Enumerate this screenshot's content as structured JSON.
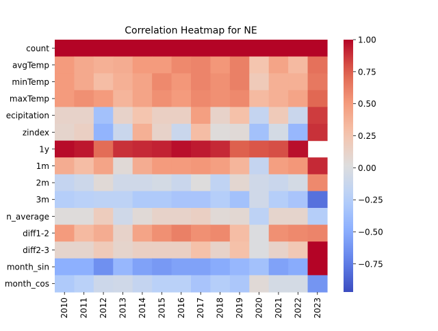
{
  "chart_data": {
    "type": "heatmap",
    "title": "Correlation Heatmap for NE",
    "xlabel": "",
    "ylabel": "",
    "colormap": "coolwarm",
    "x": [
      "2010",
      "2011",
      "2012",
      "2013",
      "2014",
      "2015",
      "2016",
      "2017",
      "2018",
      "2019",
      "2020",
      "2021",
      "2022",
      "2023"
    ],
    "y": [
      "count",
      "avgTemp",
      "minTemp",
      "maxTemp",
      "precipitation",
      "zindex",
      "1y",
      "1m",
      "2m",
      "3m",
      "precipitation_average",
      "diff1-2",
      "diff2-3",
      "month_sin",
      "month_cos"
    ],
    "y_tick_labels": [
      "count",
      "avgTemp",
      "minTemp",
      "maxTemp",
      "ecipitation",
      "zindex",
      "1y",
      "1m",
      "2m",
      "3m",
      "n_average",
      "diff1-2",
      "diff2-3",
      "month_sin",
      "month_cos"
    ],
    "values": [
      [
        1.0,
        1.0,
        1.0,
        1.0,
        1.0,
        1.0,
        1.0,
        1.0,
        1.0,
        1.0,
        1.0,
        1.0,
        1.0,
        1.0
      ],
      [
        0.5,
        0.42,
        0.38,
        0.4,
        0.5,
        0.5,
        0.58,
        0.6,
        0.52,
        0.62,
        0.25,
        0.45,
        0.32,
        0.68
      ],
      [
        0.5,
        0.42,
        0.3,
        0.38,
        0.45,
        0.58,
        0.52,
        0.6,
        0.55,
        0.62,
        0.2,
        0.38,
        0.38,
        0.65
      ],
      [
        0.5,
        0.55,
        0.5,
        0.35,
        0.45,
        0.55,
        0.5,
        0.58,
        0.55,
        0.58,
        0.32,
        0.38,
        0.45,
        0.72
      ],
      [
        0.12,
        0.12,
        -0.35,
        0.12,
        0.25,
        0.15,
        0.15,
        0.48,
        0.12,
        0.28,
        -0.15,
        0.2,
        -0.12,
        0.85
      ],
      [
        0.1,
        0.15,
        -0.45,
        -0.12,
        0.38,
        0.12,
        -0.12,
        0.3,
        0.03,
        0.05,
        -0.35,
        -0.05,
        -0.42,
        0.88
      ],
      [
        0.98,
        0.95,
        0.7,
        0.88,
        0.9,
        0.92,
        0.97,
        0.94,
        0.9,
        0.75,
        0.78,
        0.8,
        0.97,
        null
      ],
      [
        0.4,
        0.3,
        0.45,
        0.05,
        0.4,
        0.5,
        0.5,
        0.52,
        0.48,
        0.35,
        -0.15,
        0.48,
        0.52,
        0.9
      ],
      [
        -0.15,
        -0.1,
        0.05,
        -0.08,
        -0.08,
        -0.05,
        -0.12,
        0.02,
        -0.18,
        0.08,
        -0.08,
        -0.12,
        -0.05,
        0.58
      ],
      [
        -0.25,
        -0.22,
        -0.2,
        -0.2,
        -0.28,
        -0.28,
        -0.32,
        -0.32,
        -0.25,
        -0.35,
        -0.08,
        -0.25,
        -0.32,
        -0.8
      ],
      [
        0.03,
        0.03,
        0.18,
        -0.08,
        0.05,
        0.12,
        0.12,
        0.15,
        0.05,
        0.07,
        -0.2,
        0.1,
        0.1,
        -0.25
      ],
      [
        0.5,
        0.32,
        0.4,
        0.12,
        0.45,
        0.55,
        0.62,
        0.55,
        0.58,
        0.3,
        0.0,
        0.55,
        0.58,
        0.6
      ],
      [
        0.1,
        0.1,
        0.2,
        0.1,
        0.15,
        0.15,
        0.15,
        0.28,
        0.12,
        0.28,
        0.0,
        0.12,
        0.22,
        1.0
      ],
      [
        -0.48,
        -0.48,
        -0.65,
        -0.42,
        -0.55,
        -0.6,
        -0.55,
        -0.55,
        -0.5,
        -0.42,
        -0.35,
        -0.55,
        -0.5,
        1.0
      ],
      [
        -0.28,
        -0.22,
        -0.1,
        -0.08,
        -0.15,
        -0.22,
        -0.22,
        -0.32,
        -0.25,
        -0.3,
        0.05,
        -0.05,
        -0.05,
        -0.62
      ]
    ],
    "colorbar": {
      "vmin": -0.97,
      "vmax": 1.0,
      "ticks": [
        "1.00",
        "0.75",
        "0.50",
        "0.25",
        "0.00",
        "−0.25",
        "−0.50",
        "−0.75"
      ],
      "tick_values": [
        1.0,
        0.75,
        0.5,
        0.25,
        0.0,
        -0.25,
        -0.5,
        -0.75
      ]
    }
  }
}
